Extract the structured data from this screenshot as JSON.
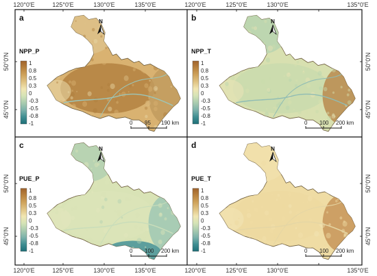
{
  "figure": {
    "top_lon_ticks": [
      "120°0'E",
      "125°0'E",
      "130°0'E",
      "135°0'E"
    ],
    "top_lon_ticks_right": [
      "120°0'E",
      "125°0'E",
      "130°0'E",
      "135°0'E"
    ],
    "bottom_lon_ticks": [
      "120°0'E",
      "125°0'E",
      "130°0'E",
      "135°0'E"
    ],
    "bottom_lon_ticks_right": [
      "120°0'E",
      "125°0'E",
      "130°0'E",
      "135°0'E"
    ],
    "left_lat_ticks": [
      "50°0'N",
      "45°0'N",
      "50°0'N",
      "45°0'N"
    ],
    "right_lat_ticks": [
      "50°0'N",
      "45°0'N",
      "50°0'N",
      "45°0'N"
    ]
  },
  "colorbar": {
    "labels": [
      "1",
      "0.8",
      "0.5",
      "0.3",
      "0",
      "-0.3",
      "-0.5",
      "-0.8",
      "-1"
    ],
    "colors": [
      "#a0632c",
      "#b9833f",
      "#cfa35c",
      "#e0c484",
      "#f1e6b2",
      "#d4e3b6",
      "#a9cbb0",
      "#7db2ab",
      "#3f8e92",
      "#1e6f78"
    ]
  },
  "north_label": "N",
  "panels": [
    {
      "letter": "a",
      "variable": "NPP_P",
      "scale": [
        "0",
        "95",
        "190 km"
      ]
    },
    {
      "letter": "b",
      "variable": "NPP_T",
      "scale": [
        "0",
        "100",
        "200 km"
      ]
    },
    {
      "letter": "c",
      "variable": "PUE_P",
      "scale": [
        "0",
        "100",
        "200 km"
      ]
    },
    {
      "letter": "d",
      "variable": "PUE_T",
      "scale": [
        "0",
        "100",
        "200 km"
      ]
    }
  ],
  "map_colors": {
    "a": {
      "base": "#d9b271",
      "north": "#ddc189",
      "center": "#b07e3f",
      "east": "#c19b5e",
      "edge": "#e8d7a6",
      "river": "#9cc6b9"
    },
    "b": {
      "base": "#d8e0b0",
      "north": "#b8d4b0",
      "center": "#c9dbae",
      "east": "#b98a4f",
      "edge": "#e8e3b6",
      "river": "#8fbcb4"
    },
    "c": {
      "base": "#d9e3b6",
      "north": "#b2d0b2",
      "center": "#dbe4b9",
      "east": "#9fc8b4",
      "south": "#4f979a",
      "edge": "#e3e6bd",
      "river": "#c9ddba"
    },
    "d": {
      "base": "#efdca4",
      "north": "#f1e1ad",
      "center": "#edd9a0",
      "east": "#c7955a",
      "edge": "#f2e5b6",
      "river": "#e5d6a4"
    }
  }
}
